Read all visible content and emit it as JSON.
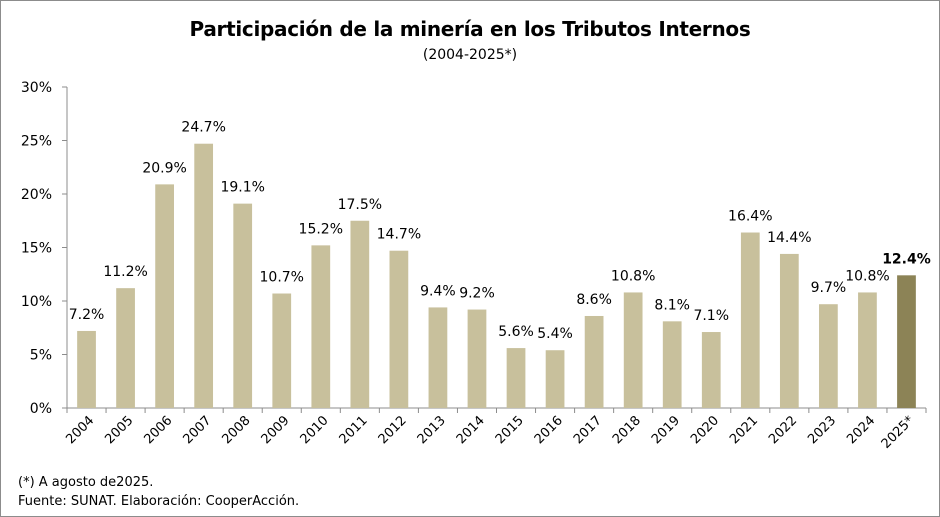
{
  "chart_data": {
    "type": "bar",
    "title": "Participación de la minería en los Tributos Internos",
    "subtitle": "(2004-2025*)",
    "xlabel": "",
    "ylabel": "",
    "ylim": [
      0,
      30
    ],
    "y_ticks": [
      0,
      5,
      10,
      15,
      20,
      25,
      30
    ],
    "y_tick_labels": [
      "0%",
      "5%",
      "10%",
      "15%",
      "20%",
      "25%",
      "30%"
    ],
    "grid": false,
    "categories": [
      "2004",
      "2005",
      "2006",
      "2007",
      "2008",
      "2009",
      "2010",
      "2011",
      "2012",
      "2013",
      "2014",
      "2015",
      "2016",
      "2017",
      "2018",
      "2019",
      "2020",
      "2021",
      "2022",
      "2023",
      "2024",
      "2025*"
    ],
    "values": [
      7.2,
      11.2,
      20.9,
      24.7,
      19.1,
      10.7,
      15.2,
      17.5,
      14.7,
      9.4,
      9.2,
      5.6,
      5.4,
      8.6,
      10.8,
      8.1,
      7.1,
      16.4,
      14.4,
      9.7,
      10.8,
      12.4
    ],
    "value_labels": [
      "7.2%",
      "11.2%",
      "20.9%",
      "24.7%",
      "19.1%",
      "10.7%",
      "15.2%",
      "17.5%",
      "14.7%",
      "9.4%",
      "9.2%",
      "5.6%",
      "5.4%",
      "8.6%",
      "10.8%",
      "8.1%",
      "7.1%",
      "16.4%",
      "14.4%",
      "9.7%",
      "10.8%",
      "12.4%"
    ],
    "highlight_index": 21,
    "bar_color": "#c8c09c",
    "highlight_color": "#8c8356",
    "axis_color": "#8c8c8c"
  },
  "notes": {
    "line1": "(*) A agosto de2025.",
    "line2": "Fuente: SUNAT. Elaboración: CooperAcción."
  }
}
